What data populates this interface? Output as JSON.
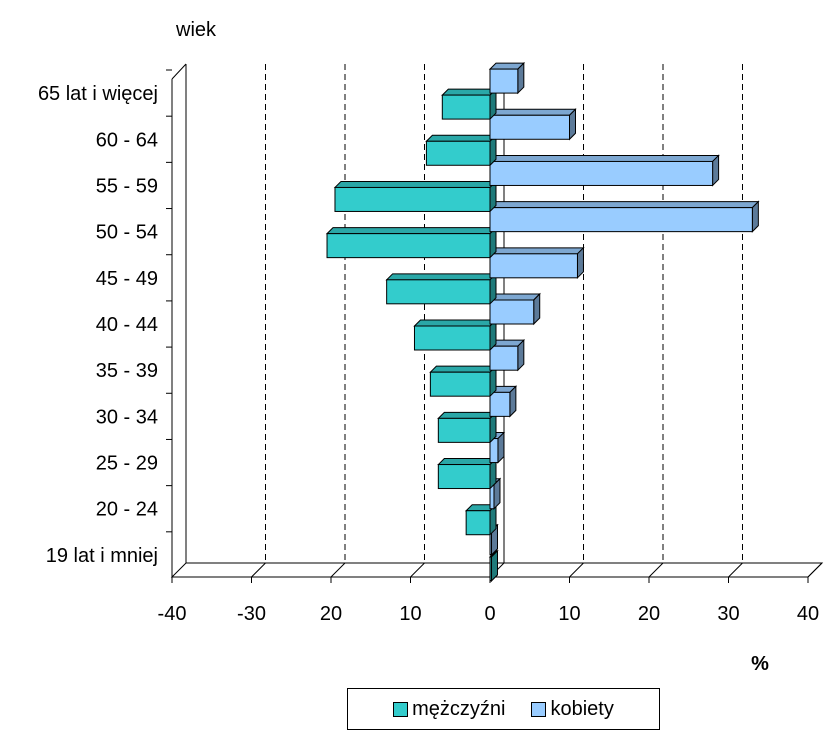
{
  "chart_data": {
    "type": "bar",
    "orientation": "horizontal",
    "style": "3d",
    "ylabel": "wiek",
    "xlabel": "%",
    "categories": [
      "19 lat i mniej",
      "20 - 24",
      "25 - 29",
      "30 - 34",
      "35 - 39",
      "40 - 44",
      "45 - 49",
      "50 - 54",
      "55 - 59",
      "60 - 64",
      "65 lat i więcej"
    ],
    "series": [
      {
        "name": "mężczyźni",
        "color": "#33CCCC",
        "values": [
          0,
          -3,
          -6.5,
          -6.5,
          -7.5,
          -9.5,
          -13,
          -20.5,
          -19.5,
          -8,
          -6
        ]
      },
      {
        "name": "kobiety",
        "color": "#99CCFF",
        "values": [
          0,
          0.5,
          1,
          2.5,
          3.5,
          5.5,
          11,
          33,
          28,
          10,
          3.5
        ]
      }
    ],
    "xlim": [
      -40,
      40
    ],
    "xticks": [
      "-40",
      "-30",
      "20",
      "10",
      "0",
      "10",
      "20",
      "30",
      "40"
    ],
    "grid": "vertical dashed",
    "legend_position": "bottom"
  }
}
